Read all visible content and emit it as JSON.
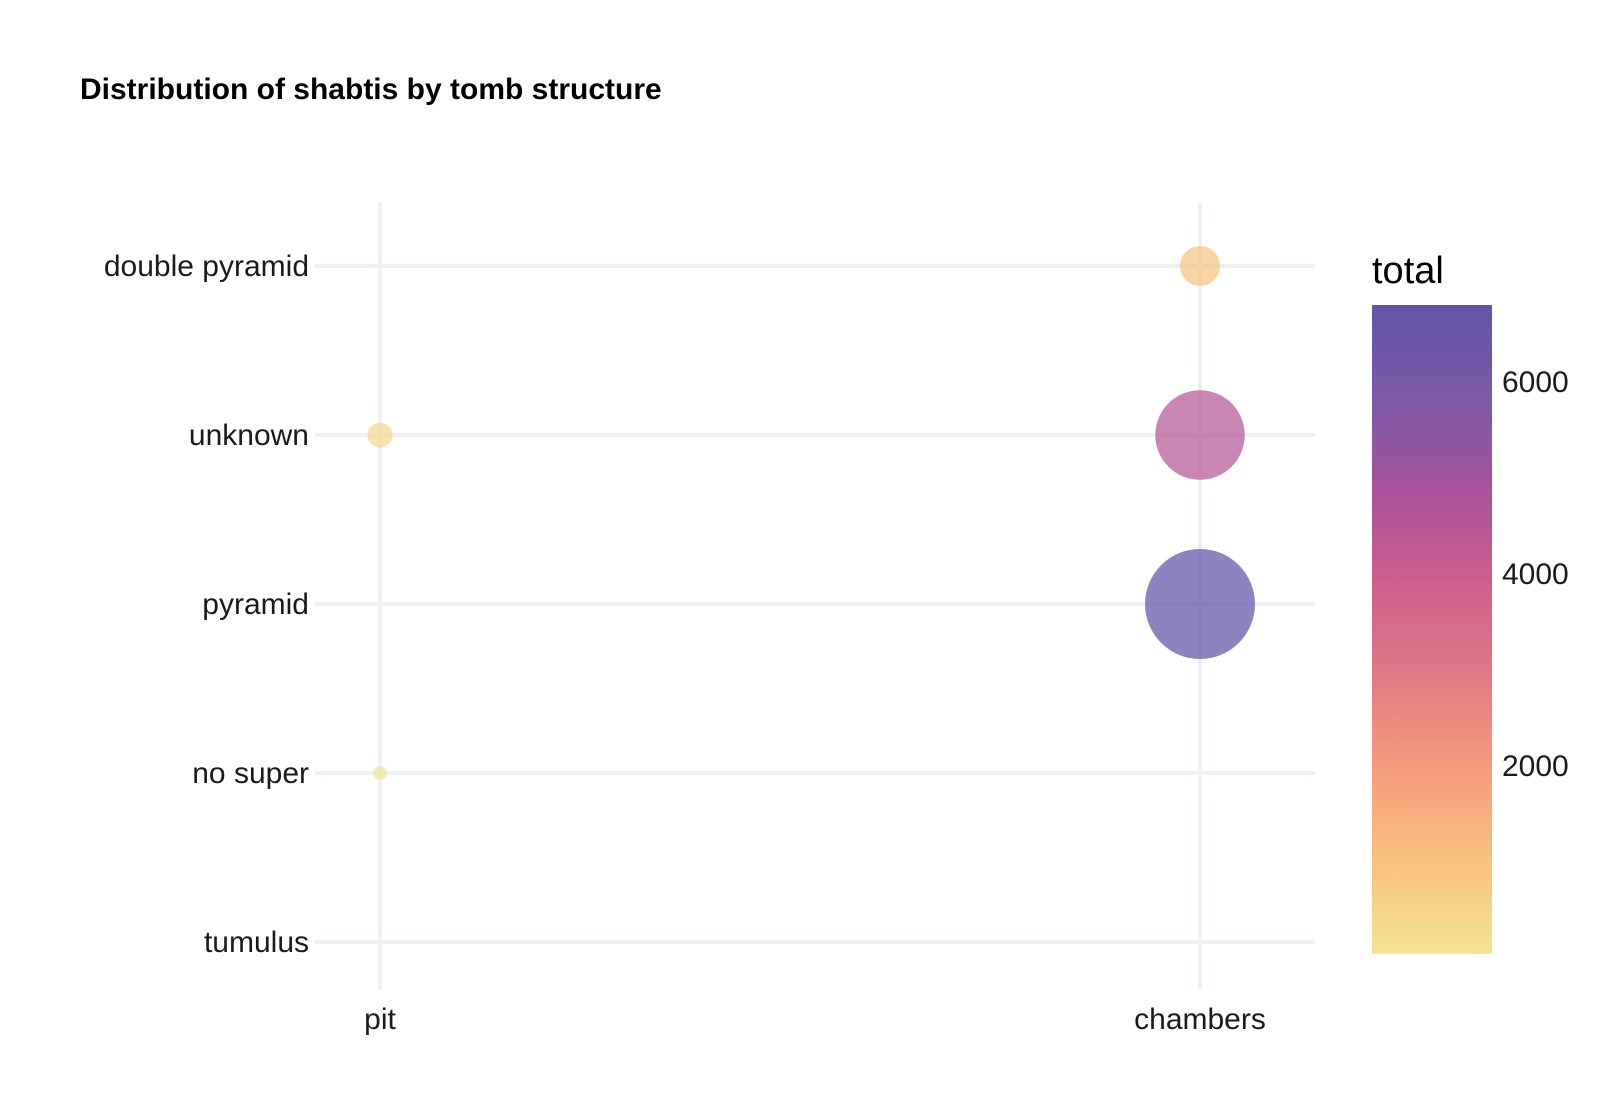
{
  "chart_data": {
    "type": "scatter",
    "title": "Distribution of shabtis by tomb structure",
    "xlabel": "",
    "ylabel": "",
    "x_categories": [
      "pit",
      "chambers"
    ],
    "y_categories": [
      "tumulus",
      "no super",
      "pyramid",
      "unknown",
      "double pyramid"
    ],
    "grid": true,
    "points": [
      {
        "x": "chambers",
        "y": "double pyramid",
        "total": 900
      },
      {
        "x": "chambers",
        "y": "unknown",
        "total": 4500
      },
      {
        "x": "chambers",
        "y": "pyramid",
        "total": 6800
      },
      {
        "x": "pit",
        "y": "unknown",
        "total": 350
      },
      {
        "x": "pit",
        "y": "no super",
        "total": 40
      }
    ],
    "size_max": 6800,
    "legend": {
      "title": "total",
      "placement": "right",
      "ticks": [
        2000,
        4000,
        6000
      ],
      "range": [
        40,
        6800
      ],
      "colors": [
        "#f3e594",
        "#f8c07f",
        "#f59c7c",
        "#e07a86",
        "#cf5f8d",
        "#a6529a",
        "#7a5aa8",
        "#6353a5"
      ]
    }
  }
}
